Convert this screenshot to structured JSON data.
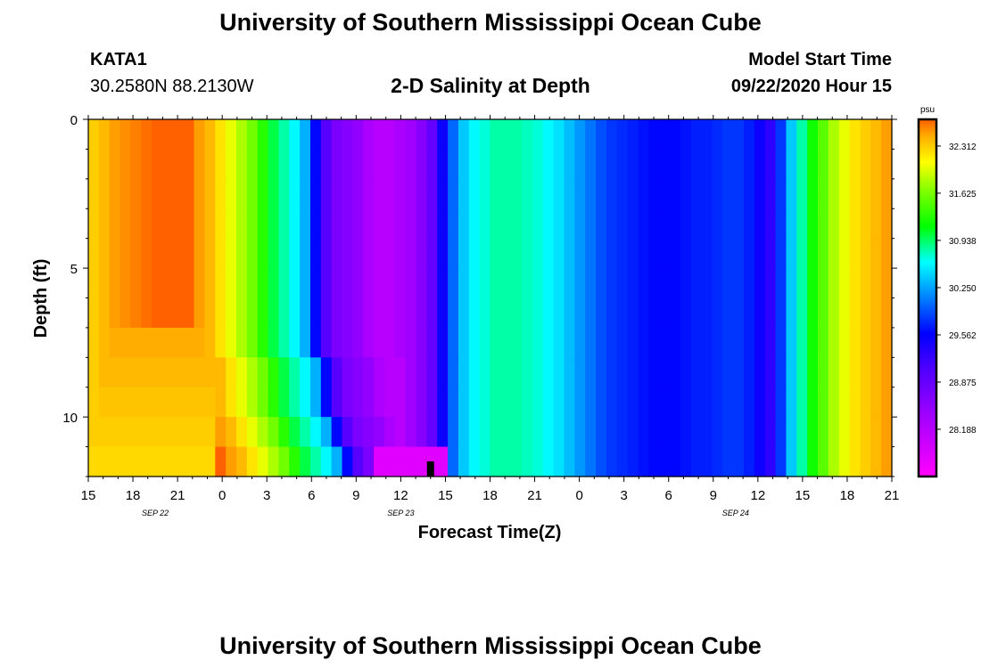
{
  "header": {
    "title": "University of Southern Mississippi Ocean Cube",
    "station": "KATA1",
    "coords": "30.2580N 88.2130W",
    "subtitle": "2-D Salinity at Depth",
    "model_start_label": "Model Start Time",
    "model_start_value": "09/22/2020 Hour 15"
  },
  "footer": {
    "title": "University of Southern Mississippi Ocean Cube"
  },
  "colors": {
    "frame": "#000000",
    "marker": "#000000"
  },
  "chart_data": {
    "type": "heatmap",
    "title": "2-D Salinity at Depth",
    "xlabel": "Forecast Time(Z)",
    "ylabel": "Depth (ft)",
    "x_range_hours": [
      0,
      54
    ],
    "y_range_ft": [
      0,
      12
    ],
    "x_ticks": [
      "15",
      "18",
      "21",
      "0",
      "3",
      "6",
      "9",
      "12",
      "15",
      "18",
      "21",
      "0",
      "3",
      "6",
      "9",
      "12",
      "15",
      "18",
      "21"
    ],
    "date_labels": [
      {
        "text": "SEP 22",
        "hour": 4.5
      },
      {
        "text": "SEP 23",
        "hour": 21
      },
      {
        "text": "SEP 24",
        "hour": 43.5
      }
    ],
    "y_ticks": [
      "0",
      "5",
      "10"
    ],
    "y_tick_values": [
      0,
      5,
      10
    ],
    "colorbar": {
      "unit": "psu",
      "range": [
        27.5,
        32.7
      ],
      "labels": [
        "32.312",
        "31.625",
        "30.938",
        "30.250",
        "29.562",
        "28.875",
        "28.188"
      ],
      "label_values": [
        32.312,
        31.625,
        30.938,
        30.25,
        29.562,
        28.875,
        28.188
      ]
    },
    "surface_profile_psu": [
      32.3,
      32.4,
      32.5,
      32.55,
      32.6,
      32.65,
      32.7,
      32.7,
      32.7,
      32.7,
      32.5,
      32.4,
      32.2,
      32.0,
      31.8,
      31.6,
      31.3,
      31.0,
      30.8,
      30.6,
      30.3,
      29.6,
      29.0,
      28.7,
      28.6,
      28.5,
      28.3,
      28.2,
      28.2,
      28.3,
      28.4,
      28.6,
      28.9,
      29.5,
      30.0,
      30.4,
      30.6,
      30.7,
      30.8,
      30.8,
      30.8,
      30.75,
      30.7,
      30.6,
      30.5,
      30.35,
      30.2,
      30.05,
      29.9,
      29.8,
      29.75,
      29.7,
      29.65,
      29.6,
      29.6,
      29.6,
      29.65,
      29.7,
      29.7,
      29.75,
      29.8,
      29.8,
      29.7,
      29.5,
      29.3,
      29.8,
      30.4,
      30.8,
      31.2,
      31.5,
      31.8,
      32.0,
      32.2,
      32.3,
      32.4,
      32.5
    ],
    "marker_hour": 23
  }
}
